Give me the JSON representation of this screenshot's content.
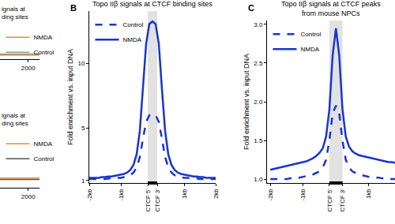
{
  "chart_data": [
    {
      "type": "line",
      "title": "ignals at\nding sites",
      "x": [
        1500,
        1600,
        1700,
        1800,
        1900,
        2000,
        2100,
        2200
      ],
      "series": [
        {
          "name": "NMDA",
          "color": "#f08a24",
          "line_style": "solid",
          "values": [
            1.2,
            1.2,
            1.2,
            1.2,
            1.2,
            1.2,
            1.2,
            1.2
          ]
        },
        {
          "name": "Control",
          "color": "#999999",
          "line_style": "solid",
          "values": [
            1.15,
            1.15,
            1.15,
            1.15,
            1.15,
            1.15,
            1.15,
            1.15
          ]
        }
      ],
      "xlim": [
        1500,
        2200
      ],
      "xticks": [
        2000
      ],
      "ylim": [
        0.9,
        3
      ],
      "tick_labels": "x",
      "legend": "upper left"
    },
    {
      "type": "line",
      "title": "ignals at\nding sites",
      "x": [
        1500,
        1600,
        1700,
        1800,
        1900,
        2000,
        2100,
        2200
      ],
      "series": [
        {
          "name": "NMDA",
          "color": "#f08a24",
          "line_style": "solid",
          "values": [
            1.25,
            1.25,
            1.25,
            1.25,
            1.25,
            1.25,
            1.25,
            1.25
          ]
        },
        {
          "name": "Control",
          "color": "#555555",
          "line_style": "solid",
          "values": [
            1.2,
            1.2,
            1.2,
            1.2,
            1.2,
            1.2,
            1.2,
            1.2
          ]
        }
      ],
      "xlim": [
        1500,
        2200
      ],
      "xticks": [
        2000
      ],
      "ylim": [
        0.9,
        3
      ],
      "tick_labels": "x",
      "legend": "upper left"
    },
    {
      "type": "line",
      "panel_label": "B",
      "title": "Topo IIβ signals at CTCF binding sites",
      "y_label": "Fold enrichment vs. input DNA",
      "x": [
        -2000,
        -1900,
        -1800,
        -1700,
        -1600,
        -1500,
        -1400,
        -1300,
        -1200,
        -1100,
        -1000,
        -900,
        -800,
        -700,
        -600,
        -500,
        -400,
        -300,
        -200,
        -100,
        0,
        100,
        200,
        300,
        400,
        500,
        600,
        700,
        800,
        900,
        1000,
        1100,
        1200,
        1300,
        1400,
        1500,
        1600,
        1700,
        1800,
        1900,
        2000
      ],
      "series": [
        {
          "name": "Control",
          "color": "#1a35d0",
          "line_style": "dashed",
          "values": [
            1.1,
            1.1,
            1.1,
            1.1,
            1.1,
            1.1,
            1.15,
            1.15,
            1.15,
            1.2,
            1.2,
            1.25,
            1.3,
            1.4,
            1.6,
            2.0,
            2.8,
            4.2,
            5.5,
            6.0,
            6.1,
            6.0,
            5.5,
            4.2,
            2.8,
            2.0,
            1.6,
            1.4,
            1.3,
            1.25,
            1.2,
            1.2,
            1.15,
            1.15,
            1.15,
            1.1,
            1.1,
            1.1,
            1.1,
            1.1,
            1.1
          ]
        },
        {
          "name": "NMDA",
          "color": "#1a35d0",
          "line_style": "solid",
          "values": [
            1.2,
            1.2,
            1.2,
            1.2,
            1.25,
            1.25,
            1.3,
            1.3,
            1.35,
            1.4,
            1.45,
            1.5,
            1.6,
            1.8,
            2.2,
            3.0,
            4.8,
            8.0,
            11.5,
            13.0,
            13.2,
            13.0,
            11.5,
            8.0,
            4.8,
            3.0,
            2.2,
            1.8,
            1.6,
            1.5,
            1.45,
            1.4,
            1.35,
            1.3,
            1.3,
            1.25,
            1.25,
            1.2,
            1.2,
            1.2,
            1.2
          ]
        }
      ],
      "xlim": [
        -2000,
        2000
      ],
      "xticks": [
        {
          "value": -2000,
          "label": "-2kb"
        },
        {
          "value": -1000,
          "label": "-1kb"
        },
        {
          "value": -150,
          "label": "CTCF 5'"
        },
        {
          "value": 150,
          "label": "CTCF 3'"
        },
        {
          "value": 1000,
          "label": "1kb"
        },
        {
          "value": 2000,
          "label": "2kb"
        }
      ],
      "ylim": [
        0.8,
        14
      ],
      "yticks": [
        1,
        5,
        10
      ],
      "shaded_region": [
        -150,
        150
      ],
      "legend": "upper left"
    },
    {
      "type": "line",
      "panel_label": "C",
      "title": "Topo IIβ signals at CTCF peaks\nfrom mouse NPCs",
      "y_label": "Fold enrichment vs. input DNA",
      "x": [
        -2000,
        -1900,
        -1800,
        -1700,
        -1600,
        -1500,
        -1400,
        -1300,
        -1200,
        -1100,
        -1000,
        -900,
        -800,
        -700,
        -600,
        -500,
        -400,
        -300,
        -200,
        -100,
        0,
        100,
        200,
        300,
        400,
        500,
        600,
        700,
        800,
        900,
        1000,
        1100,
        1200,
        1300,
        1400,
        1500,
        1600,
        1700,
        1800
      ],
      "series": [
        {
          "name": "Control",
          "color": "#1a35d0",
          "line_style": "dashed",
          "values": [
            1.0,
            1.0,
            1.0,
            1.0,
            1.0,
            1.0,
            1.01,
            1.01,
            1.02,
            1.02,
            1.03,
            1.04,
            1.05,
            1.06,
            1.08,
            1.1,
            1.15,
            1.25,
            1.5,
            1.85,
            1.95,
            1.85,
            1.5,
            1.25,
            1.15,
            1.1,
            1.08,
            1.06,
            1.05,
            1.04,
            1.03,
            1.03,
            1.02,
            1.02,
            1.01,
            1.01,
            1.0,
            1.0,
            1.0
          ]
        },
        {
          "name": "NMDA",
          "color": "#1a35d0",
          "line_style": "solid",
          "values": [
            1.12,
            1.13,
            1.14,
            1.15,
            1.16,
            1.17,
            1.18,
            1.19,
            1.2,
            1.21,
            1.22,
            1.23,
            1.25,
            1.27,
            1.3,
            1.34,
            1.4,
            1.55,
            1.9,
            2.6,
            2.95,
            2.6,
            1.9,
            1.55,
            1.42,
            1.36,
            1.33,
            1.31,
            1.3,
            1.29,
            1.28,
            1.27,
            1.26,
            1.25,
            1.24,
            1.23,
            1.22,
            1.22,
            1.21
          ]
        }
      ],
      "xlim": [
        -2100,
        1800
      ],
      "xticks": [
        {
          "value": -2000,
          "label": "-2kb"
        },
        {
          "value": -1000,
          "label": "-1kb"
        },
        {
          "value": -200,
          "label": "CTCF 5'"
        },
        {
          "value": 200,
          "label": "CTCF 3'"
        },
        {
          "value": 1000,
          "label": "1kb"
        }
      ],
      "ylim": [
        0.95,
        3.05
      ],
      "yticks": [
        {
          "value": 1,
          "label": "1.0"
        },
        {
          "value": 1.5,
          "label": "1.5"
        },
        {
          "value": 2,
          "label": "2.0"
        },
        {
          "value": 2.5,
          "label": "2.5"
        },
        {
          "value": 3,
          "label": "3.0"
        }
      ],
      "shaded_region": [
        -200,
        200
      ],
      "legend": "upper left"
    }
  ]
}
